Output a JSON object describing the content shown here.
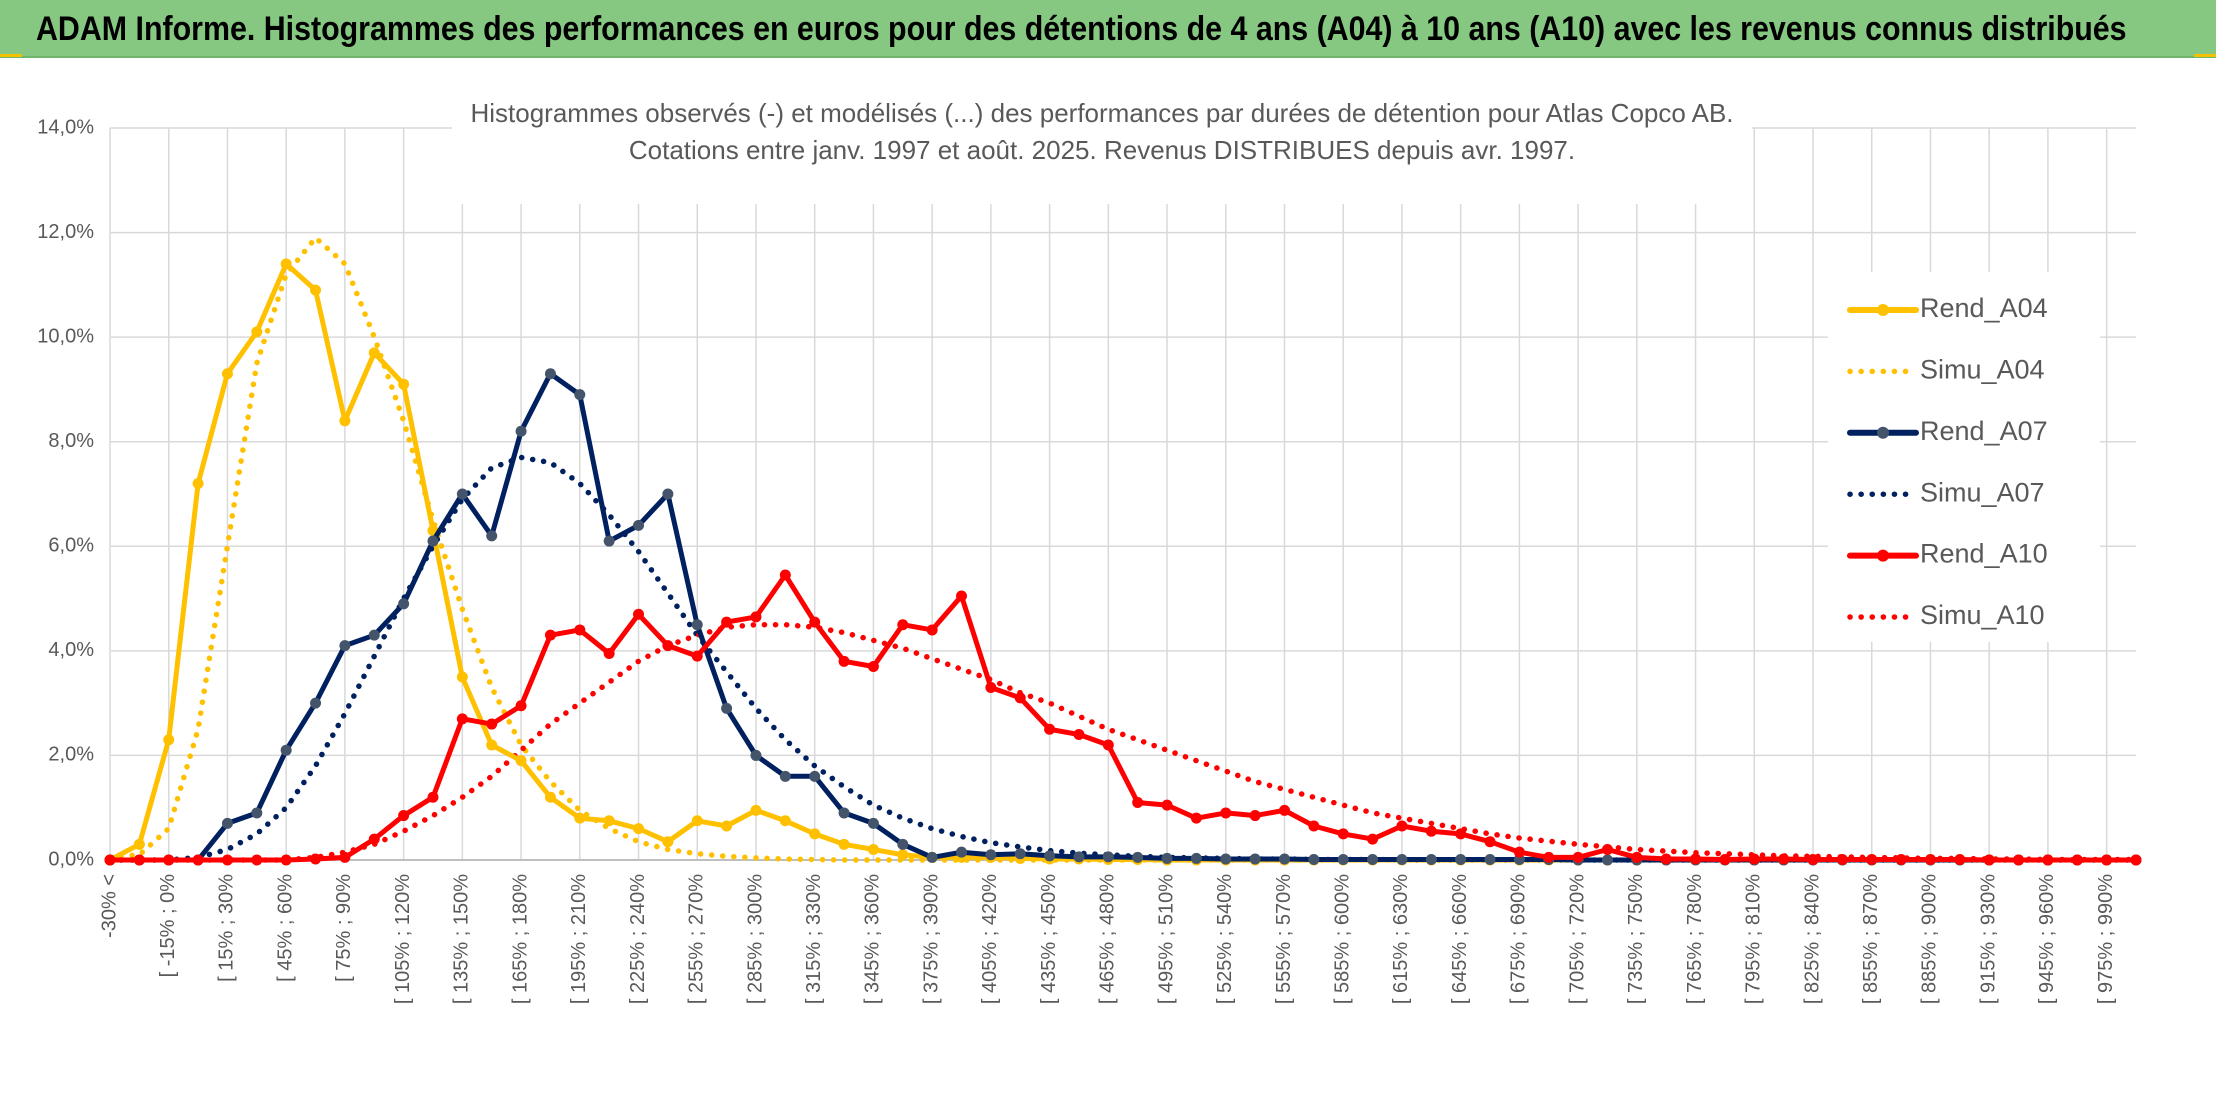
{
  "header": {
    "title": "ADAM Informe. Histogrammes des performances en euros pour des détentions de 4 ans (A04) à 10 ans (A10) avec les revenus connus distribués"
  },
  "colors": {
    "banner": "#86c882",
    "a04": "#ffc000",
    "a07": "#002060",
    "a10": "#ff0000",
    "grid": "#d9d9d9",
    "marker_a07": "#44546a"
  },
  "chart_data": {
    "type": "line",
    "title": "Histogrammes observés (-) et modélisés (...) des performances par durées de détention pour Atlas Copco AB.",
    "subtitle": "Cotations entre janv. 1997 et août. 2025. Revenus DISTRIBUES depuis avr. 1997.",
    "xlabel": "",
    "ylabel": "",
    "ylim": [
      0,
      14
    ],
    "y_ticks": [
      "0,0%",
      "2,0%",
      "4,0%",
      "6,0%",
      "8,0%",
      "10,0%",
      "12,0%",
      "14,0%"
    ],
    "x_tick_labels": [
      "-30% <",
      "[ -15% ; 0%",
      "[ 15% ; 30%",
      "[ 45% ; 60%",
      "[ 75% ; 90%",
      "[ 105% ; 120%",
      "[ 135% ; 150%",
      "[ 165% ; 180%",
      "[ 195% ; 210%",
      "[ 225% ; 240%",
      "[ 255% ; 270%",
      "[ 285% ; 300%",
      "[ 315% ; 330%",
      "[ 345% ; 360%",
      "[ 375% ; 390%",
      "[ 405% ; 420%",
      "[ 435% ; 450%",
      "[ 465% ; 480%",
      "[ 495% ; 510%",
      "[ 525% ; 540%",
      "[ 555% ; 570%",
      "[ 585% ; 600%",
      "[ 615% ; 630%",
      "[ 645% ; 660%",
      "[ 675% ; 690%",
      "[ 705% ; 720%",
      "[ 735% ; 750%",
      "[ 765% ; 780%",
      "[ 795% ; 810%",
      "[ 825% ; 840%",
      "[ 855% ; 870%",
      "[ 885% ; 900%",
      "[ 915% ; 930%",
      "[ 945% ; 960%",
      "[ 975% ; 990%"
    ],
    "category_count": 70,
    "grid": true,
    "legend_position": "right",
    "series": [
      {
        "name": "Rend_A04",
        "style": "solid",
        "color": "#ffc000",
        "values": [
          0.0,
          0.3,
          2.3,
          7.2,
          9.3,
          10.1,
          11.4,
          10.9,
          8.4,
          9.7,
          9.1,
          6.3,
          3.5,
          2.2,
          1.9,
          1.2,
          0.8,
          0.75,
          0.6,
          0.35,
          0.75,
          0.65,
          0.95,
          0.75,
          0.5,
          0.3,
          0.2,
          0.1,
          0.05,
          0.05,
          0.05,
          0.03,
          0.02,
          0.02,
          0.01,
          0.01,
          0.0,
          0.0,
          0.0,
          0.0,
          0.0,
          0.0,
          0.0,
          0.0,
          0.0,
          0.0,
          0.0,
          0.0,
          0.0,
          0.0,
          0.0,
          0.0,
          0.0,
          0.0,
          0.0,
          0.0,
          0.0,
          0.0,
          0.0,
          0.0,
          0.0,
          0.0,
          0.0,
          0.0,
          0.0,
          0.0,
          0.0,
          0.0,
          0.0,
          0.0
        ]
      },
      {
        "name": "Simu_A04",
        "style": "dotted",
        "color": "#ffc000",
        "values": [
          0.05,
          0.1,
          0.6,
          2.5,
          6.0,
          9.5,
          11.2,
          11.9,
          11.4,
          10.0,
          8.4,
          6.5,
          4.8,
          3.3,
          2.2,
          1.5,
          0.95,
          0.6,
          0.35,
          0.2,
          0.12,
          0.07,
          0.04,
          0.02,
          0.01,
          0.0,
          0.0,
          0.0,
          0.0,
          0.0,
          0.0,
          0.0,
          0.0,
          0.0,
          0.0,
          0.0,
          0.0,
          0.0,
          0.0,
          0.0,
          0.0,
          0.0,
          0.0,
          0.0,
          0.0,
          0.0,
          0.0,
          0.0,
          0.0,
          0.0,
          0.0,
          0.0,
          0.0,
          0.0,
          0.0,
          0.0,
          0.0,
          0.0,
          0.0,
          0.0,
          0.0,
          0.0,
          0.0,
          0.0,
          0.0,
          0.0,
          0.0,
          0.0,
          0.0,
          0.0
        ]
      },
      {
        "name": "Rend_A07",
        "style": "solid",
        "color": "#002060",
        "values": [
          0.0,
          0.0,
          0.0,
          0.0,
          0.7,
          0.9,
          2.1,
          3.0,
          4.1,
          4.3,
          4.9,
          6.1,
          7.0,
          6.2,
          8.2,
          9.3,
          8.9,
          6.1,
          6.4,
          7.0,
          4.5,
          2.9,
          2.0,
          1.6,
          1.6,
          0.9,
          0.7,
          0.3,
          0.05,
          0.15,
          0.1,
          0.12,
          0.08,
          0.06,
          0.06,
          0.05,
          0.03,
          0.03,
          0.02,
          0.02,
          0.02,
          0.01,
          0.01,
          0.01,
          0.01,
          0.01,
          0.01,
          0.01,
          0.01,
          0.01,
          0.0,
          0.0,
          0.0,
          0.0,
          0.0,
          0.0,
          0.0,
          0.0,
          0.0,
          0.0,
          0.0,
          0.0,
          0.0,
          0.0,
          0.0,
          0.0,
          0.0,
          0.0,
          0.0,
          0.0
        ]
      },
      {
        "name": "Simu_A07",
        "style": "dotted",
        "color": "#002060",
        "values": [
          0.0,
          0.0,
          0.0,
          0.05,
          0.2,
          0.5,
          1.0,
          1.8,
          2.8,
          3.9,
          5.0,
          6.0,
          6.9,
          7.5,
          7.7,
          7.6,
          7.2,
          6.6,
          5.9,
          5.1,
          4.3,
          3.6,
          2.9,
          2.3,
          1.8,
          1.4,
          1.05,
          0.8,
          0.6,
          0.45,
          0.33,
          0.25,
          0.18,
          0.13,
          0.1,
          0.07,
          0.05,
          0.04,
          0.03,
          0.02,
          0.02,
          0.01,
          0.01,
          0.01,
          0.0,
          0.0,
          0.0,
          0.0,
          0.0,
          0.0,
          0.0,
          0.0,
          0.0,
          0.0,
          0.0,
          0.0,
          0.0,
          0.0,
          0.0,
          0.0,
          0.0,
          0.0,
          0.0,
          0.0,
          0.0,
          0.0,
          0.0,
          0.0,
          0.0,
          0.0
        ]
      },
      {
        "name": "Rend_A10",
        "style": "solid",
        "color": "#ff0000",
        "values": [
          0.0,
          0.0,
          0.0,
          0.0,
          0.0,
          0.0,
          0.0,
          0.02,
          0.05,
          0.4,
          0.85,
          1.2,
          2.7,
          2.6,
          2.95,
          4.3,
          4.4,
          3.95,
          4.7,
          4.1,
          3.9,
          4.55,
          4.65,
          5.45,
          4.55,
          3.8,
          3.7,
          4.5,
          4.4,
          5.05,
          3.3,
          3.1,
          2.5,
          2.4,
          2.2,
          1.1,
          1.05,
          0.8,
          0.9,
          0.85,
          0.95,
          0.65,
          0.5,
          0.4,
          0.65,
          0.55,
          0.5,
          0.35,
          0.15,
          0.05,
          0.05,
          0.2,
          0.05,
          0.02,
          0.02,
          0.01,
          0.02,
          0.02,
          0.01,
          0.01,
          0.01,
          0.01,
          0.01,
          0.01,
          0.0,
          0.0,
          0.0,
          0.0,
          0.0,
          0.0
        ]
      },
      {
        "name": "Simu_A10",
        "style": "dotted",
        "color": "#ff0000",
        "values": [
          0.0,
          0.0,
          0.0,
          0.0,
          0.0,
          0.0,
          0.0,
          0.05,
          0.15,
          0.3,
          0.55,
          0.85,
          1.2,
          1.6,
          2.1,
          2.6,
          3.0,
          3.4,
          3.8,
          4.1,
          4.3,
          4.45,
          4.5,
          4.5,
          4.45,
          4.35,
          4.2,
          4.05,
          3.85,
          3.65,
          3.45,
          3.2,
          3.0,
          2.75,
          2.5,
          2.3,
          2.1,
          1.9,
          1.7,
          1.5,
          1.35,
          1.2,
          1.05,
          0.9,
          0.8,
          0.7,
          0.6,
          0.5,
          0.42,
          0.36,
          0.3,
          0.25,
          0.2,
          0.17,
          0.14,
          0.12,
          0.1,
          0.08,
          0.07,
          0.06,
          0.05,
          0.04,
          0.03,
          0.03,
          0.02,
          0.02,
          0.01,
          0.01,
          0.01,
          0.01
        ]
      }
    ]
  }
}
